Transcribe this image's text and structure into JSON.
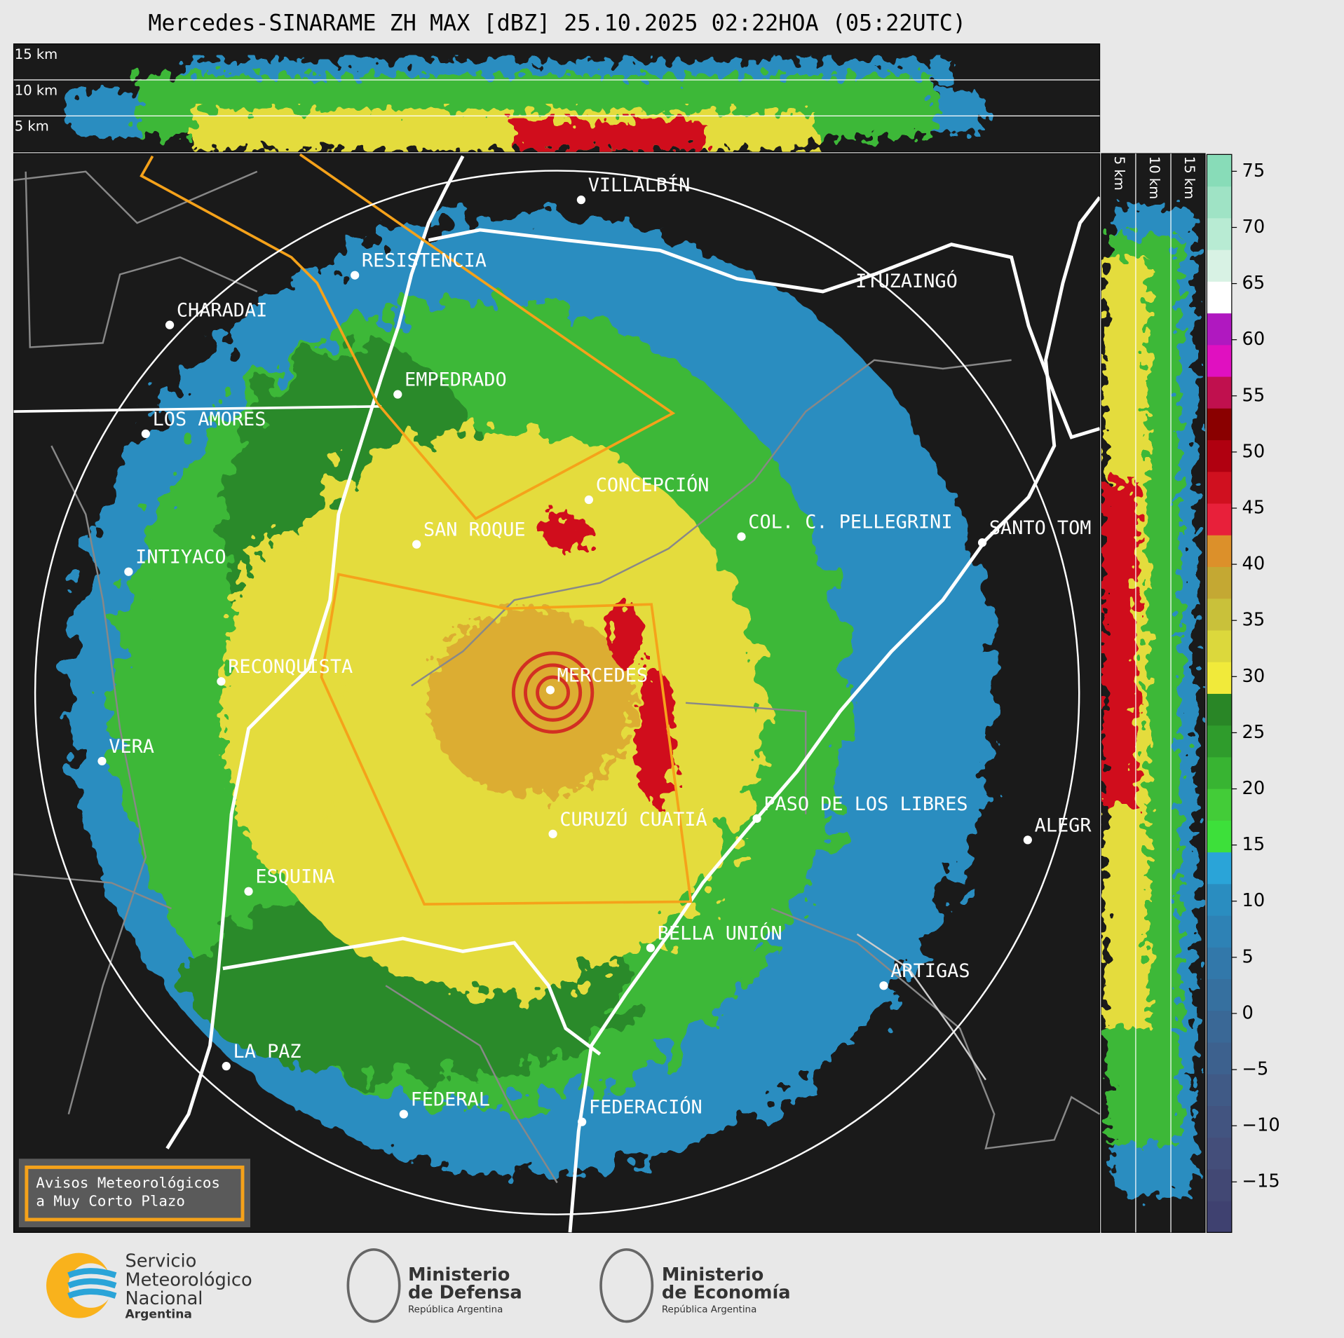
{
  "title": "Mercedes-SINARAME ZH MAX [dBZ] 25.10.2025 02:22HOA (05:22UTC)",
  "cross_section": {
    "height_labels": [
      "15 km",
      "10 km",
      "5 km"
    ]
  },
  "side_section": {
    "height_labels": [
      "5 km",
      "10 km",
      "15 km"
    ]
  },
  "map": {
    "places": [
      "VILLALBÍN",
      "RESISTENCIA",
      "CHARADAI",
      "ITUZAINGÓ",
      "EMPEDRADO",
      "LOS AMORES",
      "CONCEPCIÓN",
      "COL. C. PELLEGRINI",
      "SANTO TOM",
      "SAN ROQUE",
      "INTIYACO",
      "RECONQUISTA",
      "MERCEDES",
      "VERA",
      "PASO DE LOS LIBRES",
      "CURUZÚ CUATIÁ",
      "ALEGR",
      "ESQUINA",
      "BELLA UNIÓN",
      "ARTIGAS",
      "LA PAZ",
      "FEDERAL",
      "FEDERACIÓN"
    ]
  },
  "colorbar": {
    "lim": [
      -19.5,
      76.5
    ],
    "ticks": [
      75,
      70,
      65,
      60,
      55,
      50,
      45,
      40,
      35,
      30,
      25,
      20,
      15,
      10,
      5,
      0,
      {
        "value": -5,
        "label": "−5"
      },
      {
        "value": -10,
        "label": "−10"
      },
      {
        "value": -15,
        "label": "−15"
      }
    ],
    "colors": [
      "#3f4170",
      "#424874",
      "#444e7a",
      "#425480",
      "#405a86",
      "#3d618e",
      "#3a6896",
      "#36709f",
      "#3278aa",
      "#2e82b5",
      "#2a8dc0",
      "#2aa4d8",
      "#3de03a",
      "#43cc38",
      "#38b432",
      "#2f9c2c",
      "#298626",
      "#f1ea3a",
      "#dcd83c",
      "#c9c13a",
      "#c4a833",
      "#dc902a",
      "#e8203a",
      "#d0101f",
      "#b00010",
      "#8a0000",
      "#c0104e",
      "#e010c0",
      "#b018c0",
      "#ffffff",
      "#d8f2e4",
      "#b8ebd3",
      "#9fe3c5",
      "#88dcb8"
    ]
  },
  "warning_box": {
    "lines": [
      "Avisos Meteorológicos",
      "a Muy Corto Plazo"
    ]
  },
  "logos": [
    {
      "lines": [
        "Servicio",
        "Meteorológico",
        "Nacional"
      ],
      "subtitle": "Argentina"
    },
    {
      "lines": [
        "Ministerio",
        "de Defensa"
      ],
      "subtitle": "República Argentina"
    },
    {
      "lines": [
        "Ministerio",
        "de Economía"
      ],
      "subtitle": "República Argentina"
    }
  ]
}
